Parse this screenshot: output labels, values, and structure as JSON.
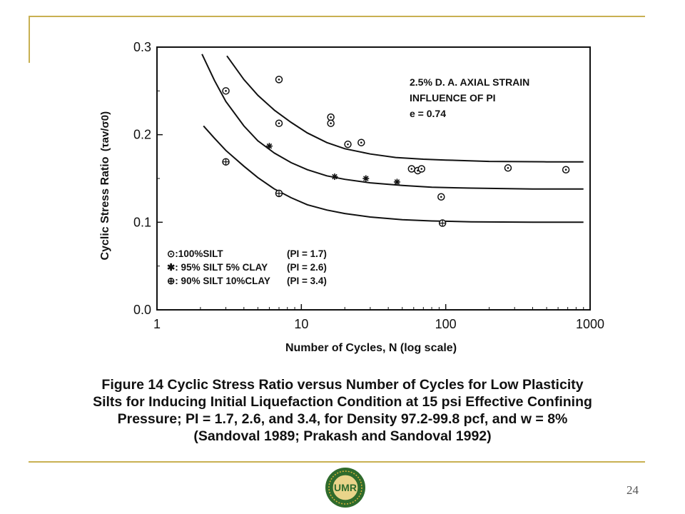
{
  "chart_data": {
    "type": "scatter",
    "xlabel": "Number of Cycles, N (log scale)",
    "ylabel": "Cyclic Stress Ratio",
    "ylabel_symbol": "(τav/σ0)",
    "x_scale": "log",
    "xlim": [
      1,
      1000
    ],
    "ylim": [
      0.0,
      0.3
    ],
    "x_ticks": [
      "1",
      "10",
      "100",
      "1000"
    ],
    "y_ticks": [
      "0.0",
      "0.1",
      "0.2",
      "0.3"
    ],
    "grid": false,
    "annotation": {
      "line1": "2.5% D. A. AXIAL STRAIN",
      "line2": "INFLUENCE OF PI",
      "line3": "e = 0.74"
    },
    "legend_position": "bottom-left",
    "series": [
      {
        "name": "100%SILT",
        "legend_label": "⊙:100%SILT",
        "pi_label": "(PI = 1.7)",
        "marker": "circle-dot",
        "points": [
          [
            3,
            0.25
          ],
          [
            7,
            0.263
          ],
          [
            7,
            0.213
          ],
          [
            16,
            0.22
          ],
          [
            16,
            0.213
          ],
          [
            21,
            0.189
          ],
          [
            26,
            0.191
          ],
          [
            58,
            0.161
          ],
          [
            64,
            0.159
          ],
          [
            68,
            0.161
          ],
          [
            93,
            0.129
          ],
          [
            270,
            0.162
          ],
          [
            680,
            0.16
          ]
        ],
        "curve": [
          [
            3.05,
            0.29
          ],
          [
            4,
            0.263
          ],
          [
            5,
            0.245
          ],
          [
            6.5,
            0.228
          ],
          [
            8.5,
            0.214
          ],
          [
            11,
            0.202
          ],
          [
            15,
            0.191
          ],
          [
            20,
            0.184
          ],
          [
            30,
            0.178
          ],
          [
            45,
            0.174
          ],
          [
            70,
            0.172
          ],
          [
            100,
            0.171
          ],
          [
            200,
            0.1695
          ],
          [
            500,
            0.169
          ],
          [
            900,
            0.169
          ]
        ]
      },
      {
        "name": "95% SILT 5% CLAY",
        "legend_label": "✱: 95% SILT  5% CLAY",
        "pi_label": "(PI = 2.6)",
        "marker": "asterisk",
        "points": [
          [
            6,
            0.187
          ],
          [
            17,
            0.152
          ],
          [
            28,
            0.15
          ],
          [
            46,
            0.146
          ]
        ],
        "curve": [
          [
            2.05,
            0.292
          ],
          [
            2.5,
            0.262
          ],
          [
            3,
            0.238
          ],
          [
            4,
            0.21
          ],
          [
            5,
            0.193
          ],
          [
            6.5,
            0.179
          ],
          [
            8.5,
            0.168
          ],
          [
            11,
            0.16
          ],
          [
            15,
            0.153
          ],
          [
            20,
            0.149
          ],
          [
            30,
            0.145
          ],
          [
            50,
            0.142
          ],
          [
            80,
            0.14
          ],
          [
            150,
            0.139
          ],
          [
            400,
            0.138
          ],
          [
            900,
            0.138
          ]
        ]
      },
      {
        "name": "90% SILT 10%CLAY",
        "legend_label": "⊕: 90% SILT 10%CLAY",
        "pi_label": "(PI = 3.4)",
        "marker": "circle-plus",
        "points": [
          [
            3,
            0.169
          ],
          [
            7,
            0.133
          ],
          [
            95,
            0.099
          ]
        ],
        "curve": [
          [
            2.1,
            0.21
          ],
          [
            2.5,
            0.196
          ],
          [
            3,
            0.182
          ],
          [
            4,
            0.164
          ],
          [
            5,
            0.151
          ],
          [
            6.5,
            0.138
          ],
          [
            8.5,
            0.128
          ],
          [
            11,
            0.12
          ],
          [
            15,
            0.114
          ],
          [
            20,
            0.11
          ],
          [
            30,
            0.106
          ],
          [
            50,
            0.103
          ],
          [
            80,
            0.1015
          ],
          [
            150,
            0.1005
          ],
          [
            400,
            0.1
          ],
          [
            900,
            0.1
          ]
        ]
      }
    ]
  },
  "caption": {
    "line1": "Figure 14  Cyclic Stress Ratio versus Number of Cycles for Low Plasticity",
    "line2": "Silts for Inducing Initial Liquefaction Condition at 15 psi Effective Confining",
    "line3": "Pressure; PI = 1.7, 2.6, and 3.4, for Density 97.2-99.8 pcf, and w = 8%",
    "line4": "(Sandoval 1989; Prakash and Sandoval 1992)"
  },
  "logo_text": "UMR",
  "page_number": "24",
  "colors": {
    "frame": "#c8b052",
    "logo_green": "#2f6b2c",
    "logo_gold": "#d8b23a",
    "ink": "#111111"
  }
}
